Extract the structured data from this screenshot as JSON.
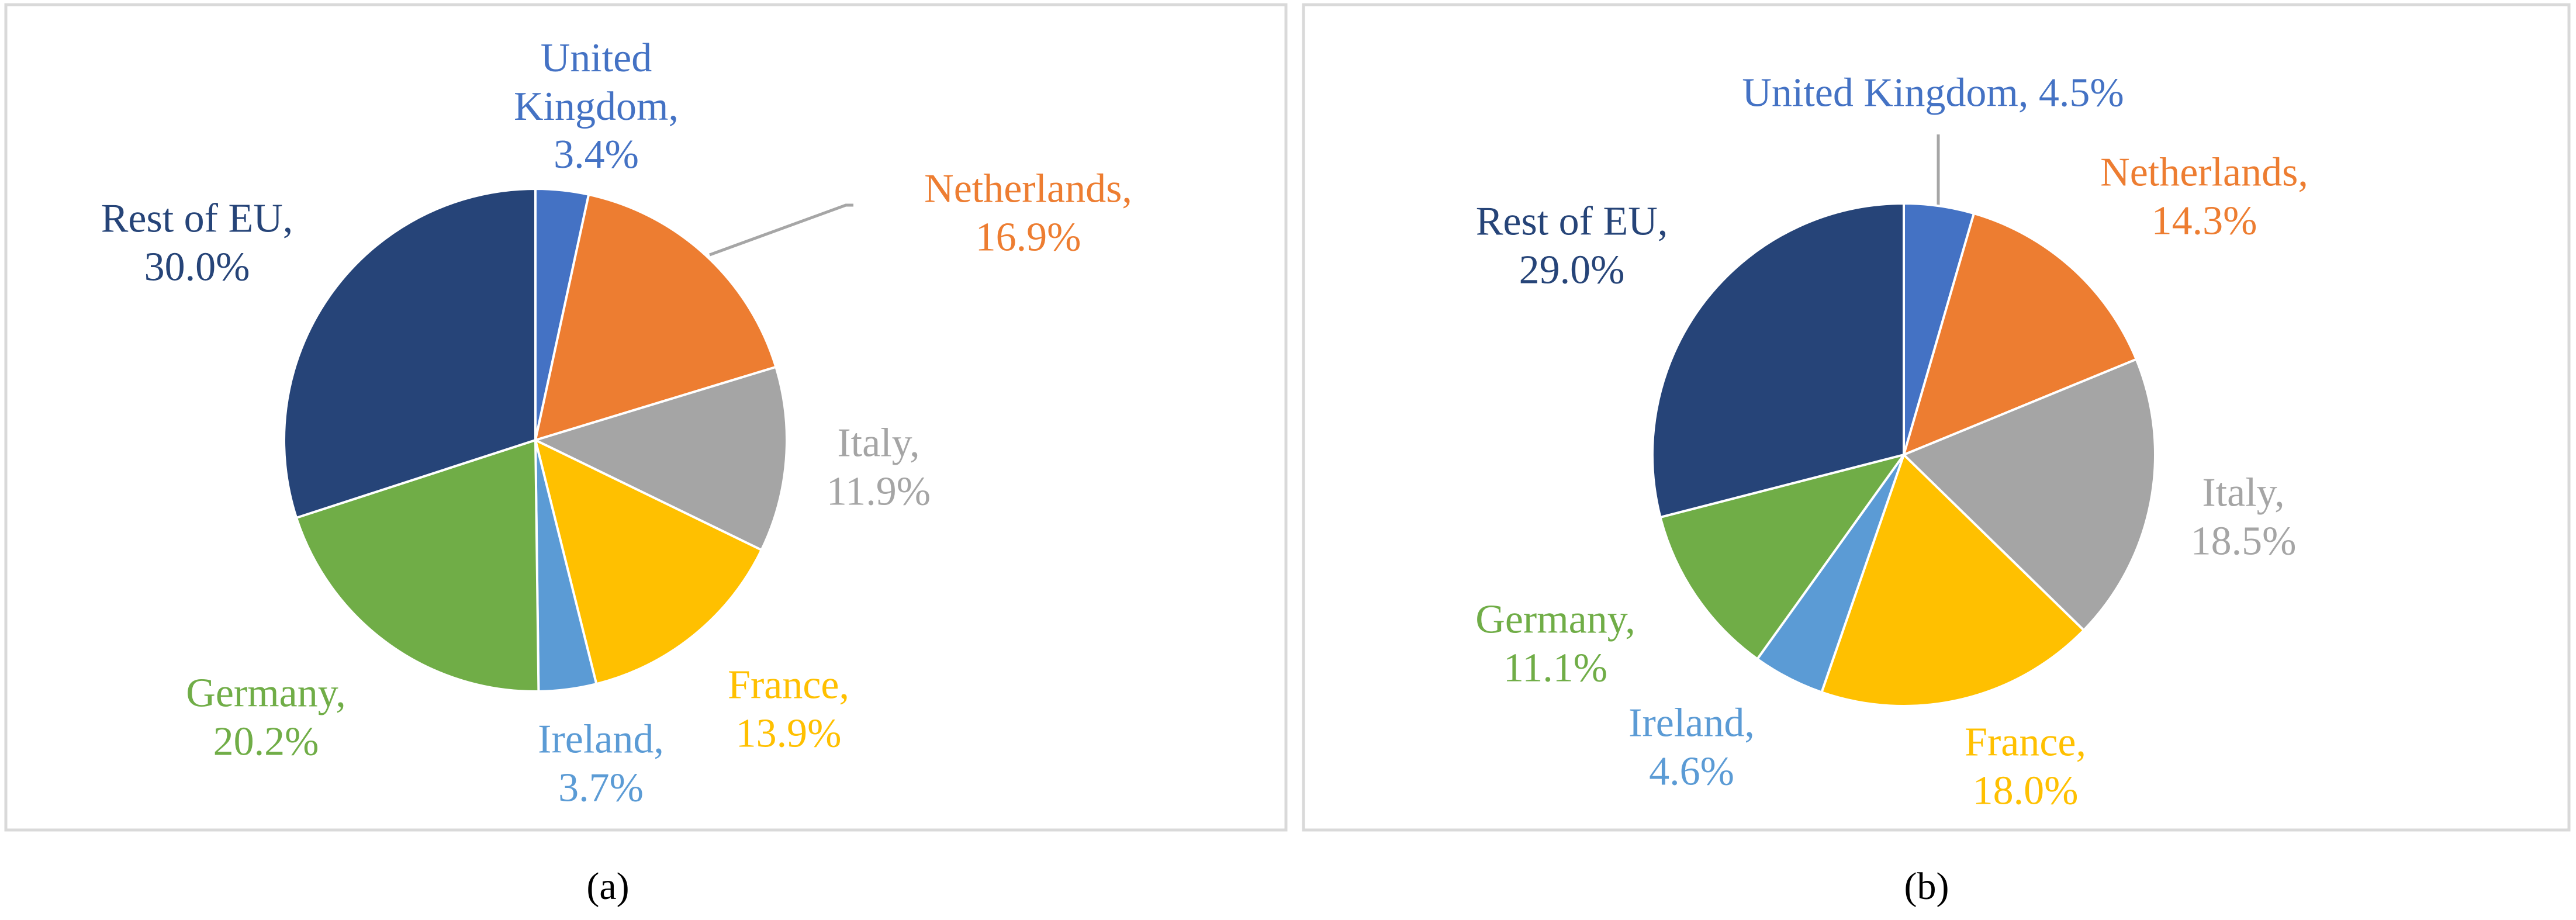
{
  "chart_data": [
    {
      "type": "pie",
      "caption": "(a)",
      "values": [
        3.4,
        16.9,
        11.9,
        13.9,
        3.7,
        20.2,
        30.0
      ],
      "value_labels": [
        "United Kingdom, 3.4%",
        "Netherlands, 16.9%",
        "Italy, 11.9%",
        "France, 13.9%",
        "Ireland, 3.7%",
        "Germany, 20.2%",
        "Rest of EU, 30.0%"
      ],
      "colors": [
        "#4472c4",
        "#ed7d31",
        "#a5a5a5",
        "#ffc000",
        "#5b9bd5",
        "#70ad47",
        "#264478"
      ]
    },
    {
      "type": "pie",
      "caption": "(b)",
      "values": [
        4.5,
        14.3,
        18.5,
        18.0,
        4.6,
        11.1,
        29.0
      ],
      "value_labels": [
        "United Kingdom, 4.5%",
        "Netherlands, 14.3%",
        "Italy, 18.5%",
        "France, 18.0%",
        "Ireland, 4.6%",
        "Germany, 11.1%",
        "Rest of EU, 29.0%"
      ],
      "colors": [
        "#4472c4",
        "#ed7d31",
        "#a5a5a5",
        "#ffc000",
        "#5b9bd5",
        "#70ad47",
        "#264478"
      ]
    }
  ]
}
